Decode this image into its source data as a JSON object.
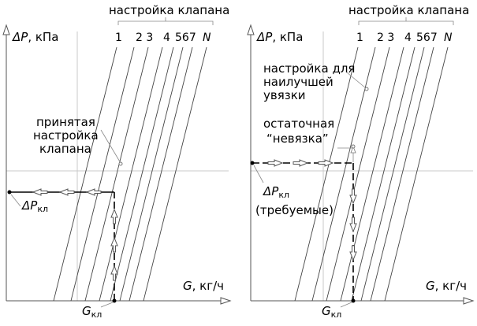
{
  "left_panel": {
    "header": "настройка клапана",
    "y_axis_label_symbol": "ΔP",
    "y_axis_label_unit": ", кПа",
    "x_axis_label_symbol": "G",
    "x_axis_label_unit": ", кг/ч",
    "tick_1": "1",
    "tick_23": "2 3",
    "tick_4": "4",
    "tick_567": "567",
    "tick_n": "N",
    "annotation_line1": "принятая",
    "annotation_line2": "настройка",
    "annotation_line3": "клапана",
    "dp_label_symbol": "ΔP",
    "dp_label_sub": "кл",
    "g_label_symbol": "G",
    "g_label_sub": "кл"
  },
  "right_panel": {
    "header": "настройка клапана",
    "y_axis_label_symbol": "ΔP",
    "y_axis_label_unit": ", кПа",
    "x_axis_label_symbol": "G",
    "x_axis_label_unit": ", кг/ч",
    "tick_1": "1",
    "tick_23": "2 3",
    "tick_4": "4",
    "tick_567": "567",
    "tick_n": "N",
    "annotation1_line1": "настройка для",
    "annotation1_line2": "наилучшей",
    "annotation1_line3": "увязки",
    "annotation2_line1": "остаточная",
    "annotation2_line2": "“невязка”",
    "dp_label_symbol": "ΔP",
    "dp_label_sub": "кл",
    "dp_label_note": "(требуемые)",
    "g_label_symbol": "G",
    "g_label_sub": "кл"
  }
}
